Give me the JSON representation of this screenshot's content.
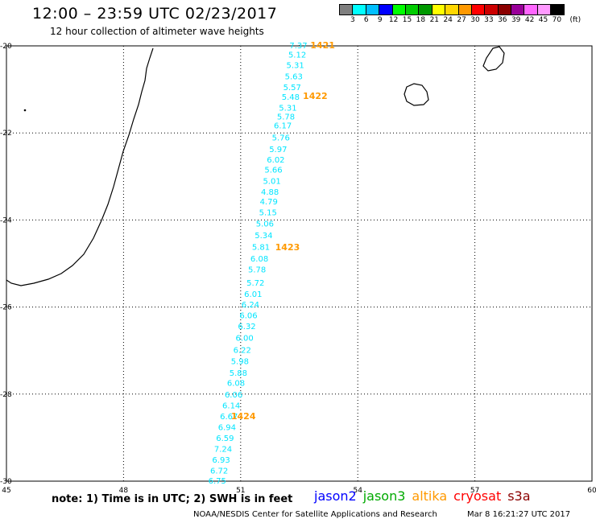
{
  "header": {
    "title": "12:00 – 23:59 UTC 02/23/2017",
    "subtitle": "12 hour collection of altimeter wave heights"
  },
  "legend": {
    "colors": [
      "#7f7f7f",
      "#00ffff",
      "#00bfff",
      "#0000ff",
      "#00ff00",
      "#00cc00",
      "#009900",
      "#ffff00",
      "#ffd700",
      "#ff9900",
      "#ff0000",
      "#cc0000",
      "#8b0000",
      "#990099",
      "#ff66ff",
      "#ff99ff",
      "#000000"
    ],
    "labels": [
      "3",
      "6",
      "9",
      "12",
      "15",
      "18",
      "21",
      "24",
      "27",
      "30",
      "33",
      "36",
      "39",
      "42",
      "45",
      "70",
      "(ft)"
    ]
  },
  "map": {
    "lon_ticks": [
      "45",
      "48",
      "51",
      "54",
      "57",
      "60"
    ],
    "lat_ticks": [
      "-20",
      "-22",
      "-24",
      "-26",
      "-28",
      "-30"
    ],
    "lon_range": [
      45,
      60
    ],
    "lat_range": [
      -20,
      -30
    ]
  },
  "chart_data": {
    "type": "scatter",
    "x_label": "",
    "y_label": "",
    "track": [
      {
        "lon": 52.48,
        "lat": -19.98,
        "swh": "7.37"
      },
      {
        "lon": 52.45,
        "lat": -20.19,
        "swh": "5.12"
      },
      {
        "lon": 52.4,
        "lat": -20.43,
        "swh": "5.31"
      },
      {
        "lon": 52.36,
        "lat": -20.69,
        "swh": "5.63"
      },
      {
        "lon": 52.32,
        "lat": -20.94,
        "swh": "5.57"
      },
      {
        "lon": 52.28,
        "lat": -21.16,
        "swh": "5.48"
      },
      {
        "lon": 52.21,
        "lat": -21.41,
        "swh": "5.31"
      },
      {
        "lon": 52.16,
        "lat": -21.62,
        "swh": "5.78"
      },
      {
        "lon": 52.08,
        "lat": -21.82,
        "swh": "6.17"
      },
      {
        "lon": 52.03,
        "lat": -22.1,
        "swh": "5.76"
      },
      {
        "lon": 51.96,
        "lat": -22.37,
        "swh": "5.97"
      },
      {
        "lon": 51.9,
        "lat": -22.61,
        "swh": "6.02"
      },
      {
        "lon": 51.84,
        "lat": -22.84,
        "swh": "5.66"
      },
      {
        "lon": 51.8,
        "lat": -23.1,
        "swh": "5.01"
      },
      {
        "lon": 51.75,
        "lat": -23.35,
        "swh": "4.88"
      },
      {
        "lon": 51.72,
        "lat": -23.57,
        "swh": "4.79"
      },
      {
        "lon": 51.7,
        "lat": -23.82,
        "swh": "5.15"
      },
      {
        "lon": 51.62,
        "lat": -24.08,
        "swh": "5.06"
      },
      {
        "lon": 51.59,
        "lat": -24.34,
        "swh": "5.34"
      },
      {
        "lon": 51.52,
        "lat": -24.61,
        "swh": "5.81"
      },
      {
        "lon": 51.48,
        "lat": -24.88,
        "swh": "6.08"
      },
      {
        "lon": 51.42,
        "lat": -25.13,
        "swh": "5.78"
      },
      {
        "lon": 51.38,
        "lat": -25.43,
        "swh": "5.72"
      },
      {
        "lon": 51.32,
        "lat": -25.69,
        "swh": "6.01"
      },
      {
        "lon": 51.25,
        "lat": -25.93,
        "swh": "6.24"
      },
      {
        "lon": 51.2,
        "lat": -26.18,
        "swh": "6.06"
      },
      {
        "lon": 51.16,
        "lat": -26.43,
        "swh": "6.32"
      },
      {
        "lon": 51.1,
        "lat": -26.7,
        "swh": "6.00"
      },
      {
        "lon": 51.04,
        "lat": -26.98,
        "swh": "6.22"
      },
      {
        "lon": 50.98,
        "lat": -27.24,
        "swh": "5.98"
      },
      {
        "lon": 50.94,
        "lat": -27.5,
        "swh": "5.88"
      },
      {
        "lon": 50.88,
        "lat": -27.74,
        "swh": "6.08"
      },
      {
        "lon": 50.82,
        "lat": -28.0,
        "swh": "6.06"
      },
      {
        "lon": 50.76,
        "lat": -28.25,
        "swh": "6.14"
      },
      {
        "lon": 50.7,
        "lat": -28.5,
        "swh": "6.67"
      },
      {
        "lon": 50.65,
        "lat": -28.75,
        "swh": "6.94"
      },
      {
        "lon": 50.6,
        "lat": -29.0,
        "swh": "6.59"
      },
      {
        "lon": 50.55,
        "lat": -29.25,
        "swh": "7.24"
      },
      {
        "lon": 50.5,
        "lat": -29.5,
        "swh": "6.93"
      },
      {
        "lon": 50.45,
        "lat": -29.75,
        "swh": "6.72"
      },
      {
        "lon": 50.4,
        "lat": -29.98,
        "swh": "6.75"
      }
    ],
    "time_labels": [
      {
        "text": "1421",
        "lon": 53.1,
        "lat": -19.98
      },
      {
        "text": "1422",
        "lon": 52.91,
        "lat": -21.15
      },
      {
        "text": "1423",
        "lon": 52.2,
        "lat": -24.62
      },
      {
        "text": "1424",
        "lon": 51.07,
        "lat": -28.5
      }
    ],
    "track_color": "#00e5ff",
    "time_label_color": "#ff9900"
  },
  "footer": {
    "note": "note:  1) Time is in UTC;  2) SWH is in feet",
    "satellites": [
      {
        "name": "jason2",
        "color": "#0000ff"
      },
      {
        "name": "jason3",
        "color": "#00aa00"
      },
      {
        "name": "altika",
        "color": "#ff9900"
      },
      {
        "name": "cryosat",
        "color": "#ff0000"
      },
      {
        "name": "s3a",
        "color": "#8b0000"
      }
    ],
    "credit": "NOAA/NESDIS Center for Satellite Applications and Research",
    "timestamp": "Mar  8 16:21:27 UTC 2017"
  }
}
